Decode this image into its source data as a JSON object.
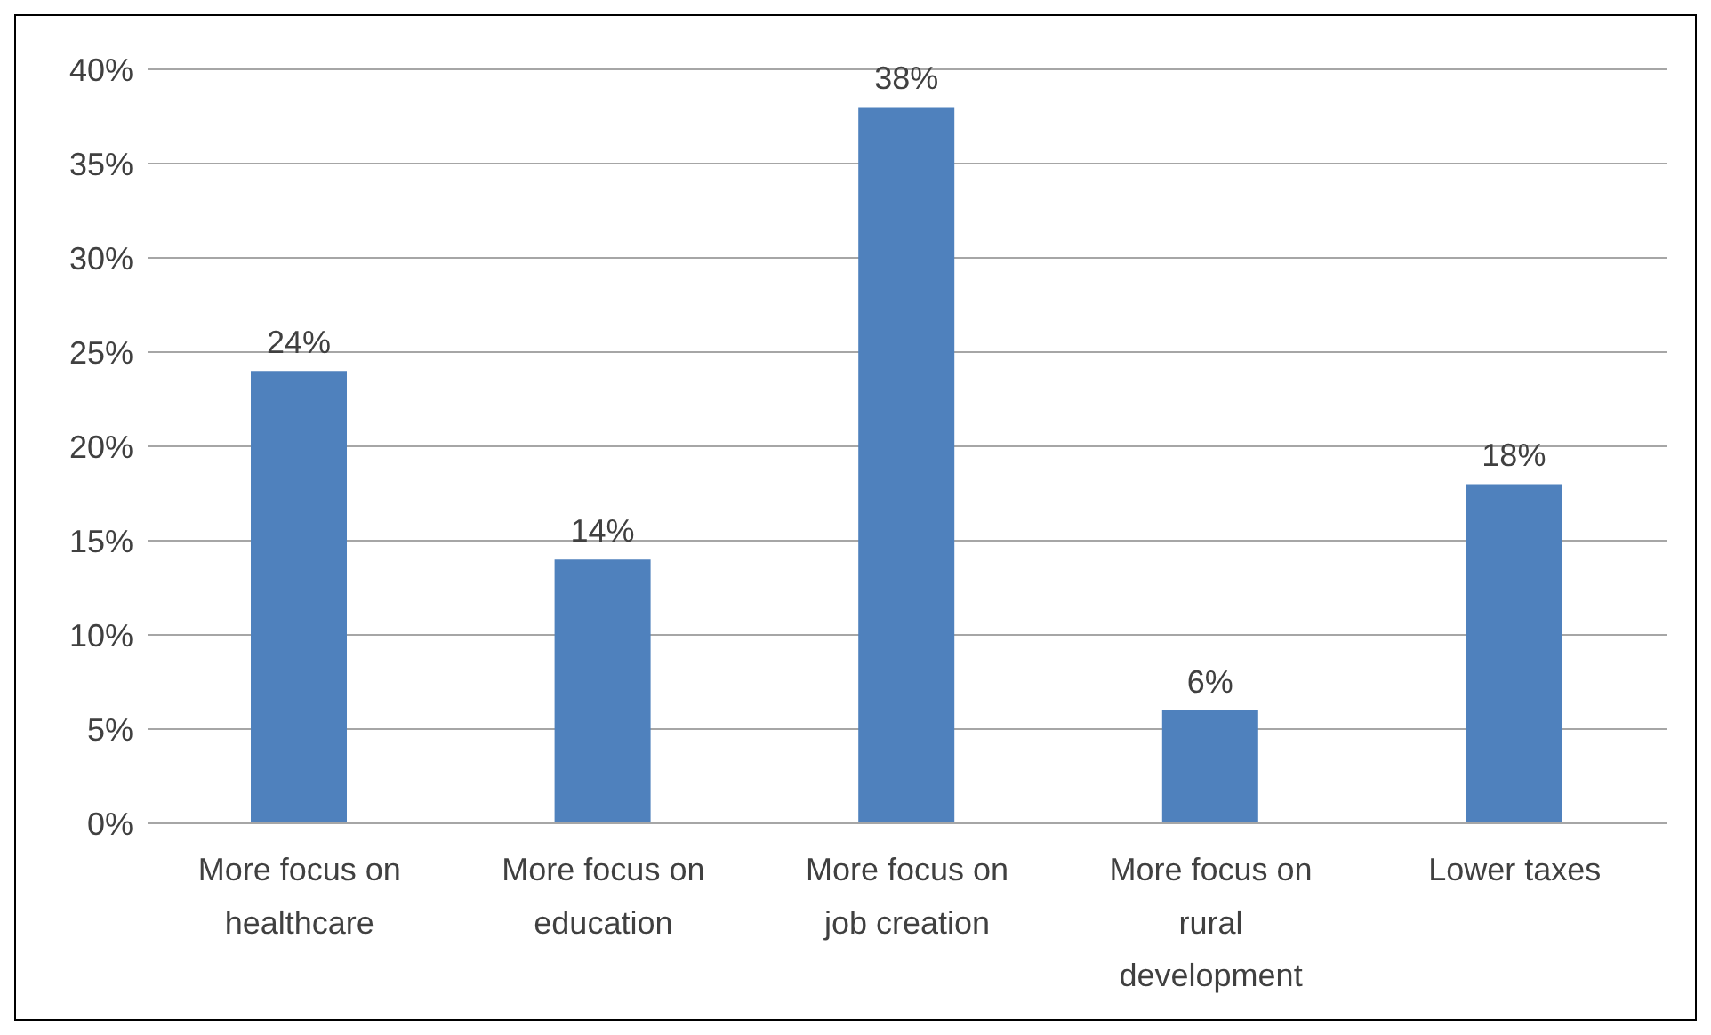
{
  "chart_data": {
    "type": "bar",
    "categories": [
      "More focus on healthcare",
      "More focus on education",
      "More focus on job creation",
      "More focus on rural development",
      "Lower taxes"
    ],
    "values": [
      24,
      14,
      38,
      6,
      18
    ],
    "value_labels": [
      "24%",
      "14%",
      "38%",
      "6%",
      "18%"
    ],
    "color": "#4f81bd",
    "ylim": [
      0,
      40
    ],
    "yticks": [
      {
        "value": 0,
        "label": "0%"
      },
      {
        "value": 5,
        "label": "5%"
      },
      {
        "value": 10,
        "label": "10%"
      },
      {
        "value": 15,
        "label": "15%"
      },
      {
        "value": 20,
        "label": "20%"
      },
      {
        "value": 25,
        "label": "25%"
      },
      {
        "value": 30,
        "label": "30%"
      },
      {
        "value": 35,
        "label": "35%"
      },
      {
        "value": 40,
        "label": "40%"
      }
    ],
    "grid": "y",
    "legend": false
  }
}
